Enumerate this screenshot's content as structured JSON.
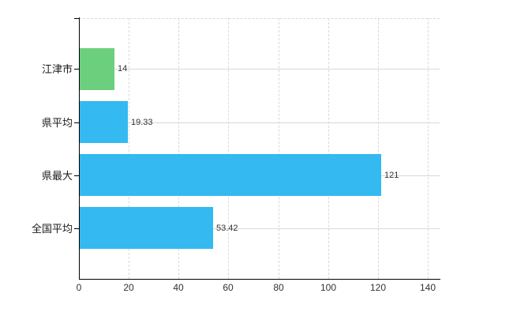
{
  "chart_data": {
    "type": "bar",
    "orientation": "horizontal",
    "title": "",
    "xlabel": "",
    "ylabel": "",
    "categories": [
      "江津市",
      "県平均",
      "県最大",
      "全国平均"
    ],
    "values": [
      14,
      19.33,
      121,
      53.42
    ],
    "value_labels": [
      "14",
      "19.33",
      "121",
      "53.42"
    ],
    "bar_colors": [
      "#6ccf7e",
      "#34b9f0",
      "#34b9f0",
      "#34b9f0"
    ],
    "x_ticks": [
      0,
      20,
      40,
      60,
      80,
      100,
      120,
      140
    ],
    "x_tick_labels": [
      "0",
      "20",
      "40",
      "60",
      "80",
      "100",
      "120",
      "140"
    ],
    "xlim": [
      0,
      145
    ],
    "legend": "none",
    "grid": {
      "vertical_style": "dashed",
      "horizontal_style": "solid",
      "color": "#d9d9d9",
      "top_border_style": "dashed"
    },
    "axis_color": "#000000",
    "tick_label_color": "#333333",
    "background_color": "#ffffff"
  }
}
